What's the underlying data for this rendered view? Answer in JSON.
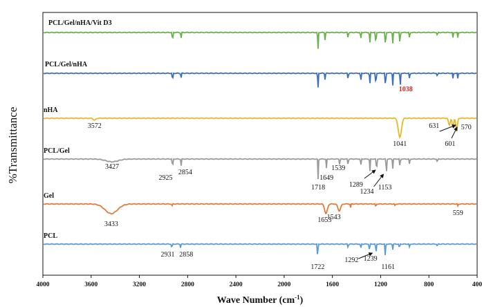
{
  "chart_data": {
    "type": "line",
    "xlabel": "Wave Number (cm",
    "xlabel_sup": "-1",
    "xlabel_close": ")",
    "ylabel": "%Transmittance",
    "xlim": [
      4000,
      400
    ],
    "xticks": [
      "4000",
      "3600",
      "3200",
      "2800",
      "2400",
      "2000",
      "1600",
      "1200",
      "800",
      "400"
    ],
    "grid": false,
    "series": [
      {
        "name": "PCL/Gel/nHA/Vit D3",
        "color": "#6ab04c",
        "peaks": [
          {
            "x": 2925,
            "depth": 16
          },
          {
            "x": 2855,
            "depth": 10
          },
          {
            "x": 1720,
            "depth": 30
          },
          {
            "x": 1660,
            "depth": 12
          },
          {
            "x": 1470,
            "depth": 10
          },
          {
            "x": 1365,
            "depth": 12
          },
          {
            "x": 1290,
            "depth": 18
          },
          {
            "x": 1240,
            "depth": 22
          },
          {
            "x": 1160,
            "depth": 26
          },
          {
            "x": 1100,
            "depth": 16
          },
          {
            "x": 1040,
            "depth": 20
          },
          {
            "x": 960,
            "depth": 10
          },
          {
            "x": 730,
            "depth": 6
          },
          {
            "x": 600,
            "depth": 8
          },
          {
            "x": 560,
            "depth": 8
          }
        ],
        "labels": []
      },
      {
        "name": "PCL/Gel/nHA",
        "color": "#3a6fc0",
        "peaks": [
          {
            "x": 2925,
            "depth": 14
          },
          {
            "x": 2855,
            "depth": 8
          },
          {
            "x": 1720,
            "depth": 26
          },
          {
            "x": 1660,
            "depth": 10
          },
          {
            "x": 1470,
            "depth": 10
          },
          {
            "x": 1365,
            "depth": 14
          },
          {
            "x": 1290,
            "depth": 18
          },
          {
            "x": 1240,
            "depth": 22
          },
          {
            "x": 1160,
            "depth": 26
          },
          {
            "x": 1100,
            "depth": 18
          },
          {
            "x": 1038,
            "depth": 22
          },
          {
            "x": 960,
            "depth": 10
          },
          {
            "x": 730,
            "depth": 6
          },
          {
            "x": 600,
            "depth": 8
          },
          {
            "x": 560,
            "depth": 8
          }
        ],
        "labels": [
          {
            "text": "1038",
            "x": 1038,
            "red": true
          }
        ]
      },
      {
        "name": "nHA",
        "color": "#e5b82a",
        "peaks": [
          {
            "x": 3572,
            "depth": 3
          },
          {
            "x": 1041,
            "depth": 28
          },
          {
            "x": 631,
            "depth": 10
          },
          {
            "x": 601,
            "depth": 14
          },
          {
            "x": 570,
            "depth": 18
          }
        ],
        "labels": [
          {
            "text": "3572",
            "x": 3572
          },
          {
            "text": "1041",
            "x": 1041
          },
          {
            "text": "631",
            "x": 631
          },
          {
            "text": "601",
            "x": 601
          },
          {
            "text": "570",
            "x": 570
          }
        ]
      },
      {
        "name": "PCL/Gel",
        "color": "#9a9a9a",
        "peaks": [
          {
            "x": 3427,
            "depth": 4
          },
          {
            "x": 2925,
            "depth": 16
          },
          {
            "x": 2854,
            "depth": 10
          },
          {
            "x": 1718,
            "depth": 30
          },
          {
            "x": 1649,
            "depth": 14
          },
          {
            "x": 1539,
            "depth": 10
          },
          {
            "x": 1470,
            "depth": 10
          },
          {
            "x": 1365,
            "depth": 12
          },
          {
            "x": 1289,
            "depth": 18
          },
          {
            "x": 1234,
            "depth": 22
          },
          {
            "x": 1153,
            "depth": 26
          },
          {
            "x": 1100,
            "depth": 14
          },
          {
            "x": 1040,
            "depth": 14
          },
          {
            "x": 960,
            "depth": 10
          },
          {
            "x": 730,
            "depth": 6
          }
        ],
        "labels": [
          {
            "text": "3427",
            "x": 3427
          },
          {
            "text": "2925",
            "x": 2925
          },
          {
            "text": "2854",
            "x": 2854
          },
          {
            "text": "1718",
            "x": 1718
          },
          {
            "text": "1649",
            "x": 1649
          },
          {
            "text": "1539",
            "x": 1539
          },
          {
            "text": "1289",
            "x": 1289
          },
          {
            "text": "1234",
            "x": 1234
          },
          {
            "text": "1153",
            "x": 1153
          }
        ]
      },
      {
        "name": "Gel",
        "color": "#e07b39",
        "peaks": [
          {
            "x": 3433,
            "depth": 14
          },
          {
            "x": 2930,
            "depth": 4
          },
          {
            "x": 1653,
            "depth": 14
          },
          {
            "x": 1543,
            "depth": 10
          },
          {
            "x": 1450,
            "depth": 6
          },
          {
            "x": 1240,
            "depth": 6
          },
          {
            "x": 1080,
            "depth": 4
          },
          {
            "x": 559,
            "depth": 4
          }
        ],
        "labels": [
          {
            "text": "3433",
            "x": 3433
          },
          {
            "text": "1653",
            "x": 1653
          },
          {
            "text": "1543",
            "x": 1543
          },
          {
            "text": "559",
            "x": 559
          }
        ]
      },
      {
        "name": "PCL",
        "color": "#5b9bd5",
        "peaks": [
          {
            "x": 2931,
            "depth": 8
          },
          {
            "x": 2858,
            "depth": 6
          },
          {
            "x": 1722,
            "depth": 24
          },
          {
            "x": 1470,
            "depth": 6
          },
          {
            "x": 1365,
            "depth": 8
          },
          {
            "x": 1292,
            "depth": 12
          },
          {
            "x": 1239,
            "depth": 16
          },
          {
            "x": 1161,
            "depth": 20
          },
          {
            "x": 1100,
            "depth": 8
          },
          {
            "x": 1045,
            "depth": 8
          },
          {
            "x": 960,
            "depth": 6
          },
          {
            "x": 730,
            "depth": 4
          }
        ],
        "labels": [
          {
            "text": "2931",
            "x": 2931
          },
          {
            "text": "2858",
            "x": 2858
          },
          {
            "text": "1722",
            "x": 1722
          },
          {
            "text": "1292",
            "x": 1292
          },
          {
            "text": "1239",
            "x": 1239
          },
          {
            "text": "1161",
            "x": 1161
          }
        ]
      }
    ]
  }
}
